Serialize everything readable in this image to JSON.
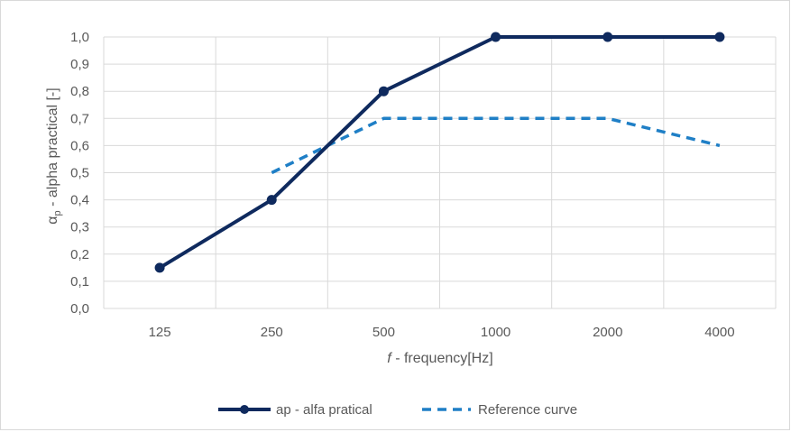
{
  "chart_data": {
    "type": "line",
    "categories": [
      "125",
      "250",
      "500",
      "1000",
      "2000",
      "4000"
    ],
    "series": [
      {
        "name": "ap - alfa pratical",
        "values": [
          0.15,
          0.4,
          0.8,
          1.0,
          1.0,
          1.0
        ],
        "color": "#0f2a5e",
        "style": "solid",
        "markers": true
      },
      {
        "name": "Reference curve",
        "values": [
          null,
          0.5,
          0.7,
          0.7,
          0.7,
          0.6
        ],
        "color": "#1f7fc6",
        "style": "dashed",
        "markers": false
      }
    ],
    "xlabel_italic": "f",
    "xlabel_rest": " - frequency[Hz]",
    "ylabel_symbol": "α",
    "ylabel_subscript": "p",
    "ylabel_rest": " - alpha practical [-]",
    "ylim": [
      0,
      1
    ],
    "yticks": [
      "0,0",
      "0,1",
      "0,2",
      "0,3",
      "0,4",
      "0,5",
      "0,6",
      "0,7",
      "0,8",
      "0,9",
      "1,0"
    ],
    "grid": true,
    "legend_position": "bottom",
    "gridline_color": "#d9d9d9"
  }
}
